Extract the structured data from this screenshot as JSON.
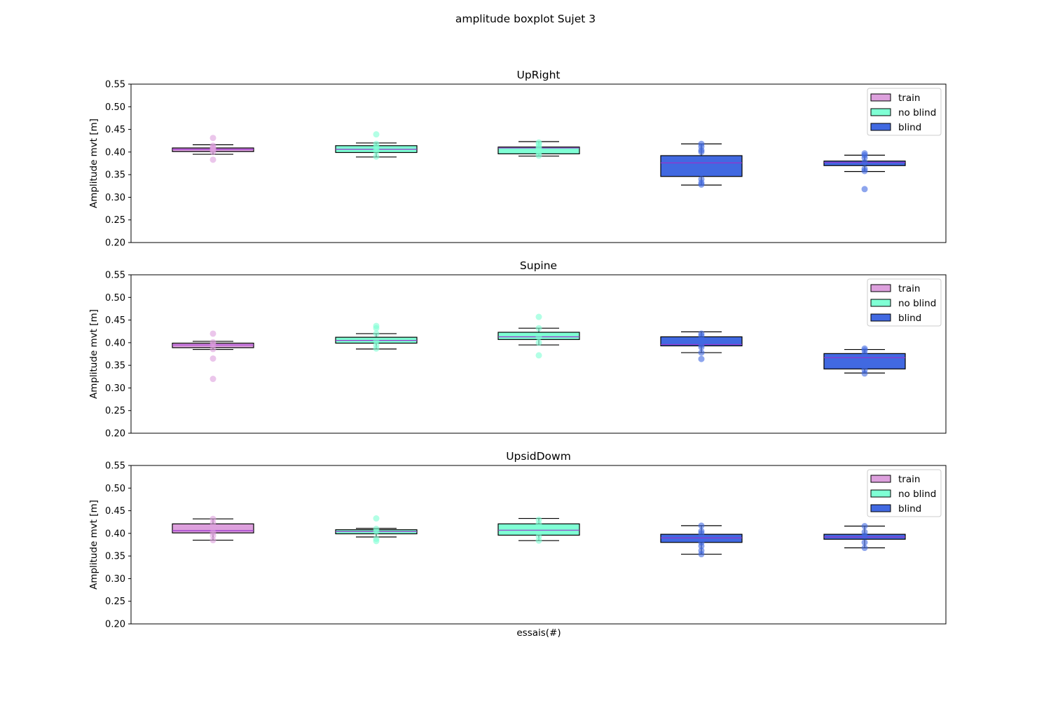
{
  "figure": {
    "suptitle": "amplitude boxplot Sujet 3",
    "xlabel": "essais(#)"
  },
  "legend_labels": [
    "train",
    "no blind",
    "blind"
  ],
  "colors": {
    "train": "#dda0dd",
    "no_blind": "#7fffd4",
    "blind": "#4169e1",
    "median": "#9932cc"
  },
  "chart_data": [
    {
      "type": "box",
      "title": "UpRight",
      "ylabel": "Amplitude mvt [m]",
      "ylim": [
        0.2,
        0.55
      ],
      "yticks": [
        "0.20",
        "0.25",
        "0.30",
        "0.35",
        "0.40",
        "0.45",
        "0.50",
        "0.55"
      ],
      "legend_position": "top-right",
      "boxes": [
        {
          "group": "train",
          "whislo": 0.395,
          "q1": 0.401,
          "med": 0.406,
          "q3": 0.409,
          "whishi": 0.416,
          "points": [
            0.431,
            0.383,
            0.4,
            0.405,
            0.408,
            0.41,
            0.414
          ]
        },
        {
          "group": "no blind",
          "whislo": 0.389,
          "q1": 0.399,
          "med": 0.406,
          "q3": 0.414,
          "whishi": 0.42,
          "points": [
            0.439,
            0.39,
            0.402,
            0.406,
            0.412,
            0.418
          ]
        },
        {
          "group": "no blind",
          "whislo": 0.391,
          "q1": 0.396,
          "med": 0.409,
          "q3": 0.411,
          "whishi": 0.423,
          "points": [
            0.392,
            0.398,
            0.408,
            0.412,
            0.418,
            0.421
          ]
        },
        {
          "group": "blind",
          "whislo": 0.327,
          "q1": 0.346,
          "med": 0.376,
          "q3": 0.392,
          "whishi": 0.418,
          "points": [
            0.328,
            0.332,
            0.34,
            0.4,
            0.404,
            0.412,
            0.418
          ]
        },
        {
          "group": "blind",
          "whislo": 0.357,
          "q1": 0.37,
          "med": 0.377,
          "q3": 0.38,
          "whishi": 0.393,
          "points": [
            0.318,
            0.358,
            0.363,
            0.377,
            0.387,
            0.393,
            0.397
          ]
        }
      ]
    },
    {
      "type": "box",
      "title": "Supine",
      "ylabel": "Amplitude mvt [m]",
      "ylim": [
        0.2,
        0.55
      ],
      "yticks": [
        "0.20",
        "0.25",
        "0.30",
        "0.35",
        "0.40",
        "0.45",
        "0.50",
        "0.55"
      ],
      "legend_position": "top-right",
      "boxes": [
        {
          "group": "train",
          "whislo": 0.385,
          "q1": 0.389,
          "med": 0.395,
          "q3": 0.399,
          "whishi": 0.403,
          "points": [
            0.42,
            0.401,
            0.386,
            0.365,
            0.32,
            0.396
          ]
        },
        {
          "group": "no blind",
          "whislo": 0.386,
          "q1": 0.399,
          "med": 0.405,
          "q3": 0.412,
          "whishi": 0.42,
          "points": [
            0.437,
            0.432,
            0.42,
            0.404,
            0.395,
            0.387
          ]
        },
        {
          "group": "no blind",
          "whislo": 0.395,
          "q1": 0.407,
          "med": 0.413,
          "q3": 0.423,
          "whishi": 0.432,
          "points": [
            0.457,
            0.372,
            0.432,
            0.412,
            0.4
          ]
        },
        {
          "group": "blind",
          "whislo": 0.378,
          "q1": 0.393,
          "med": 0.396,
          "q3": 0.413,
          "whishi": 0.424,
          "points": [
            0.364,
            0.378,
            0.39,
            0.395,
            0.415,
            0.42
          ]
        },
        {
          "group": "blind",
          "whislo": 0.333,
          "q1": 0.342,
          "med": 0.367,
          "q3": 0.376,
          "whishi": 0.385,
          "points": [
            0.332,
            0.34,
            0.375,
            0.383,
            0.387
          ]
        }
      ]
    },
    {
      "type": "box",
      "title": "UpsidDowm",
      "ylabel": "Amplitude mvt [m]",
      "ylim": [
        0.2,
        0.55
      ],
      "yticks": [
        "0.20",
        "0.25",
        "0.30",
        "0.35",
        "0.40",
        "0.45",
        "0.50",
        "0.55"
      ],
      "legend_position": "top-right",
      "boxes": [
        {
          "group": "train",
          "whislo": 0.385,
          "q1": 0.401,
          "med": 0.406,
          "q3": 0.421,
          "whishi": 0.432,
          "points": [
            0.432,
            0.423,
            0.402,
            0.395,
            0.385
          ]
        },
        {
          "group": "no blind",
          "whislo": 0.392,
          "q1": 0.399,
          "med": 0.404,
          "q3": 0.408,
          "whishi": 0.411,
          "points": [
            0.433,
            0.383,
            0.388,
            0.404,
            0.41
          ]
        },
        {
          "group": "no blind",
          "whislo": 0.384,
          "q1": 0.396,
          "med": 0.407,
          "q3": 0.421,
          "whishi": 0.433,
          "points": [
            0.384,
            0.393,
            0.421,
            0.43
          ]
        },
        {
          "group": "blind",
          "whislo": 0.354,
          "q1": 0.38,
          "med": 0.39,
          "q3": 0.398,
          "whishi": 0.417,
          "points": [
            0.354,
            0.362,
            0.372,
            0.38,
            0.4,
            0.405,
            0.417
          ]
        },
        {
          "group": "blind",
          "whislo": 0.368,
          "q1": 0.387,
          "med": 0.392,
          "q3": 0.398,
          "whishi": 0.416,
          "points": [
            0.368,
            0.38,
            0.395,
            0.403,
            0.416
          ]
        }
      ]
    }
  ]
}
